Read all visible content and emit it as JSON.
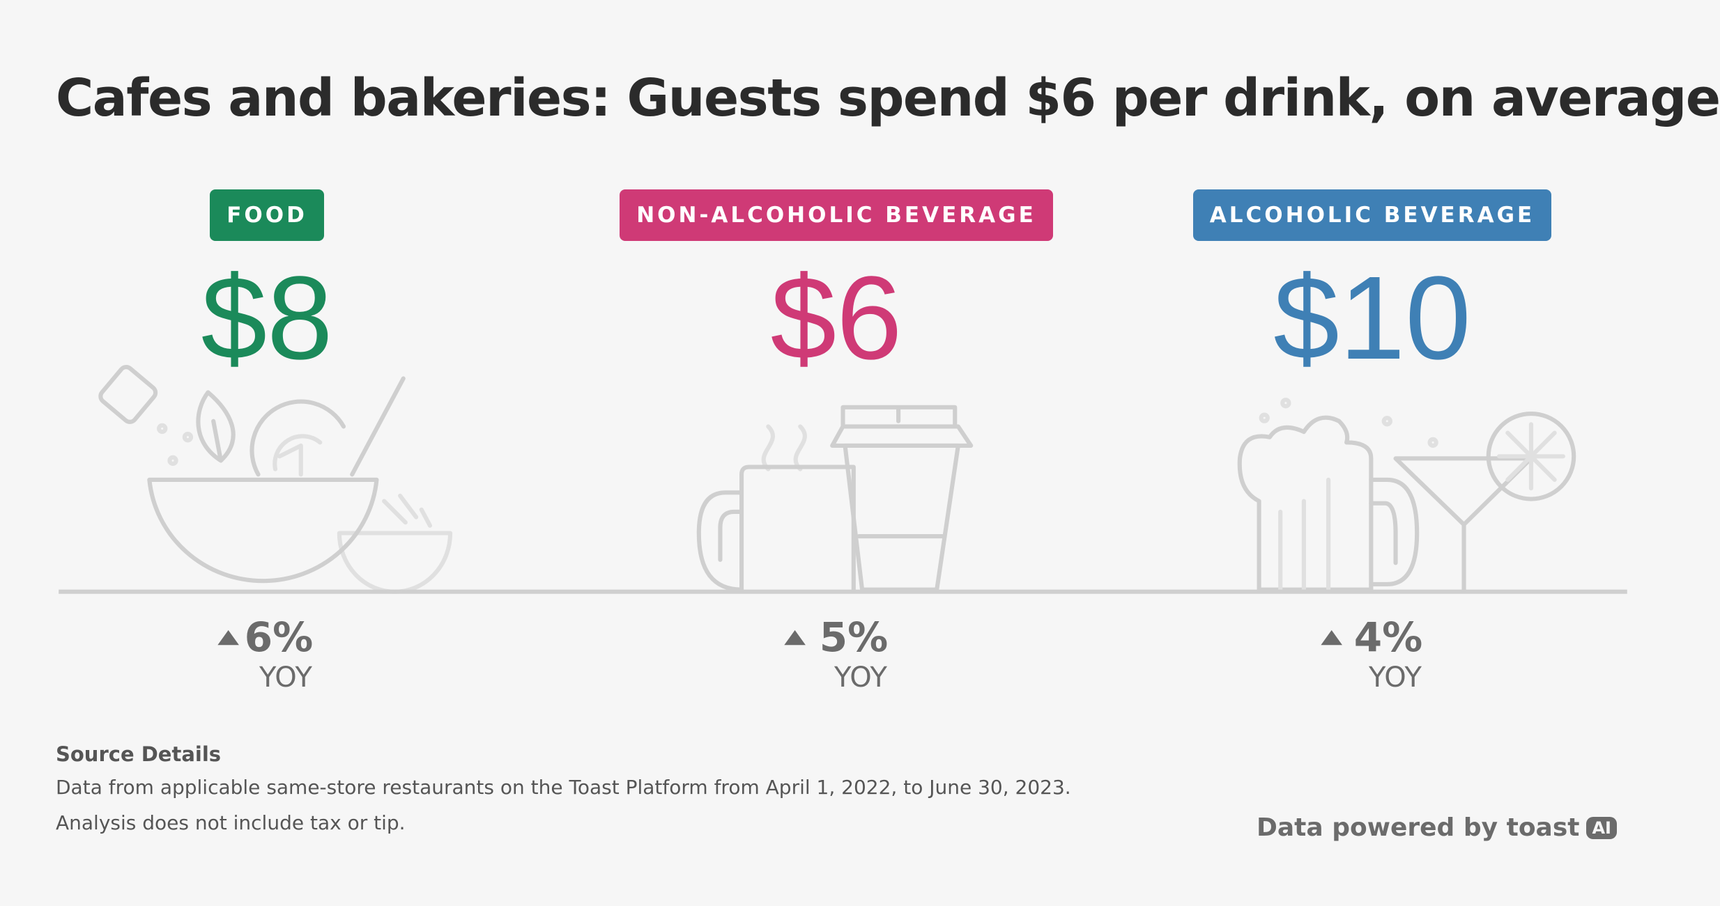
{
  "header": {
    "title": "Cafes and bakeries: Guests spend $6 per drink, on average"
  },
  "cards": [
    {
      "label": "FOOD",
      "value": "$8",
      "change": "6%",
      "period": "YOY"
    },
    {
      "label": "NON-ALCOHOLIC BEVERAGE",
      "value": "$6",
      "change": "5%",
      "period": "YOY"
    },
    {
      "label": "ALCOHOLIC BEVERAGE",
      "value": "$10",
      "change": "4%",
      "period": "YOY"
    }
  ],
  "source": {
    "heading": "Source Details",
    "lines": [
      "Data from applicable same-store restaurants on the Toast Platform from April 1, 2022, to June 30, 2023.",
      "Analysis does not include tax or tip."
    ]
  },
  "footer": {
    "text": "Data powered by toast",
    "badge": "AI"
  }
}
